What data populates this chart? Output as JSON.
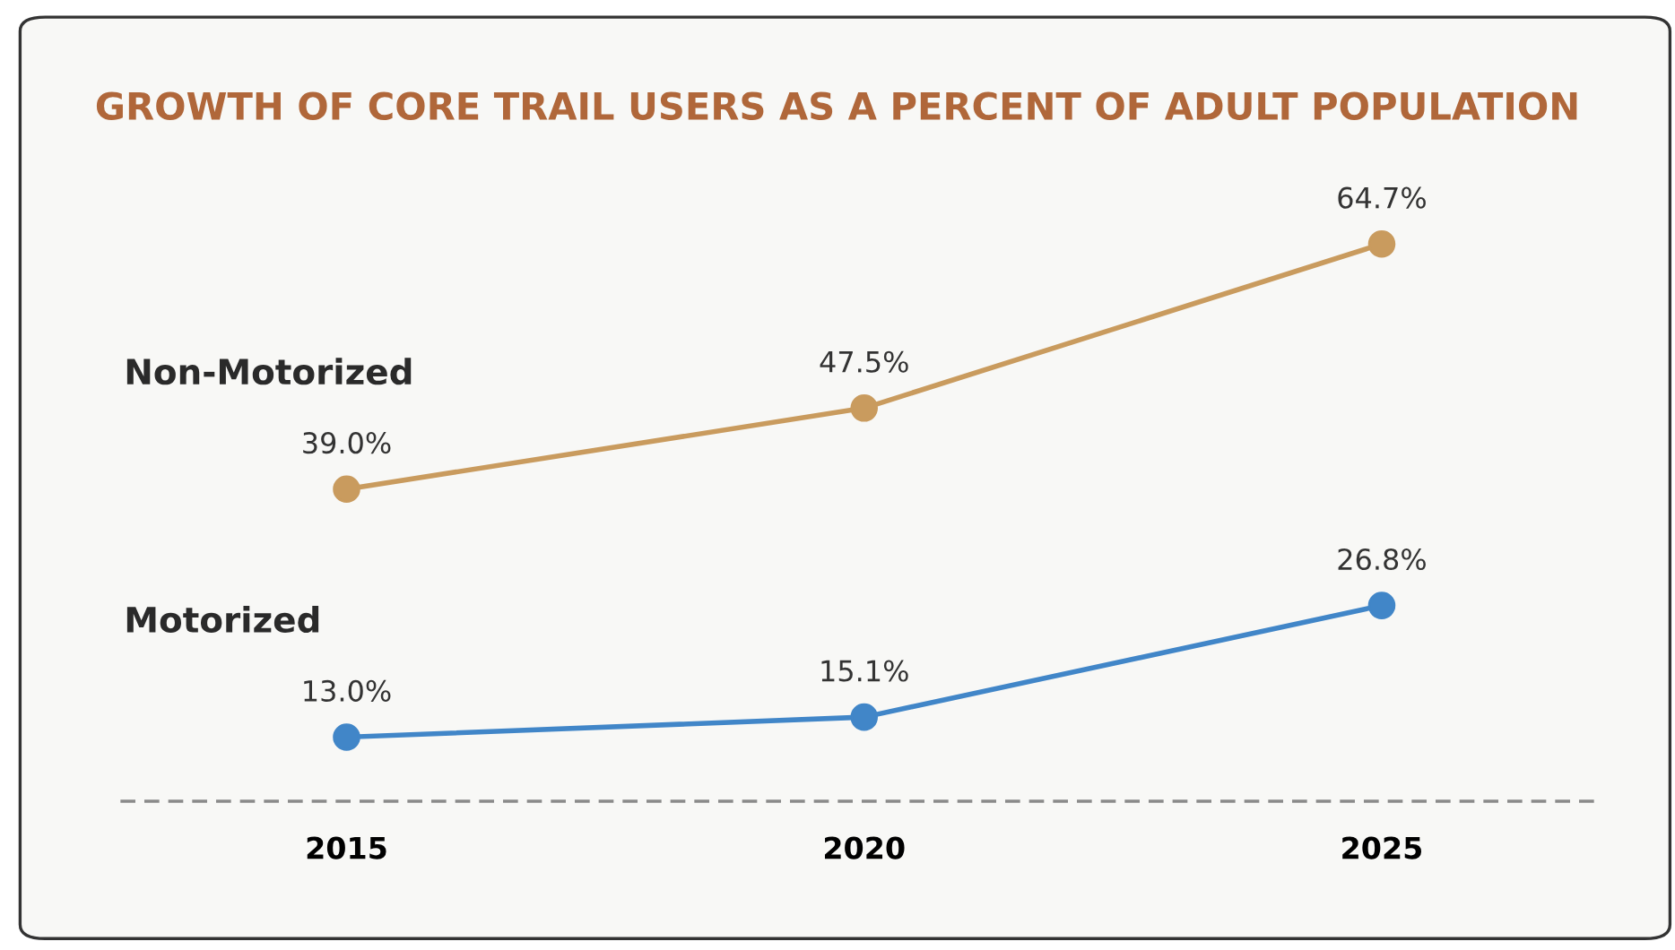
{
  "chart_data": {
    "type": "line",
    "title": "GROWTH OF CORE TRAIL USERS AS A PERCENT OF ADULT POPULATION",
    "categories": [
      "2015",
      "2020",
      "2025"
    ],
    "series": [
      {
        "name": "Non-Motorized",
        "color": "#c99b5e",
        "values": [
          39.0,
          47.5,
          64.7
        ],
        "value_labels": [
          "39.0%",
          "47.5%",
          "64.7%"
        ]
      },
      {
        "name": "Motorized",
        "color": "#4186c8",
        "values": [
          13.0,
          15.1,
          26.8
        ],
        "value_labels": [
          "13.0%",
          "15.1%",
          "26.8%"
        ]
      }
    ],
    "tick_labels": "x",
    "marker": "circle",
    "line_style": "solid",
    "grid": false,
    "legend": false
  }
}
